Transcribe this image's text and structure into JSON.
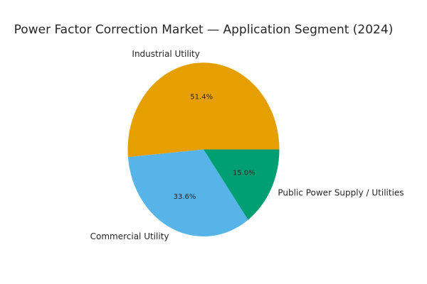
{
  "chart_data": {
    "type": "pie",
    "title": "Power Factor Correction Market — Application Segment (2024)",
    "labels": [
      "Industrial Utility",
      "Commercial Utility",
      "Public Power Supply / Utilities"
    ],
    "values": [
      51.4,
      33.6,
      15.0
    ],
    "pct_labels": [
      "51.4%",
      "33.6%",
      "15.0%"
    ],
    "colors": [
      "#E69F00",
      "#56B4E9",
      "#009E73"
    ],
    "start_angle_deg": 0,
    "direction": "counterclockwise",
    "legend": "none",
    "background": "#FFFFFF",
    "text_color": "#262626"
  }
}
